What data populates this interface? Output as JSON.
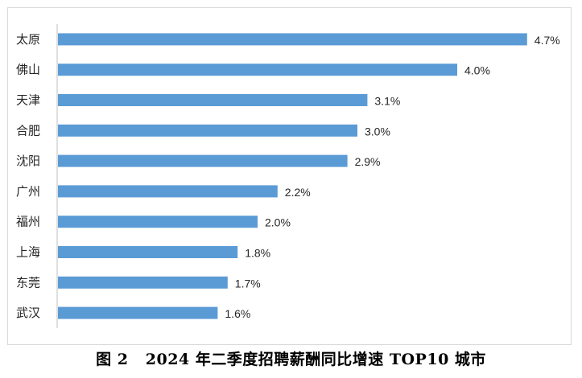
{
  "caption": "图 2   2024 年二季度招聘薪酬同比增速 TOP10 城市",
  "colors": {
    "bar": "#5b9bd5",
    "axis": "#bfbfbf",
    "text": "#262626",
    "frame": "#d9d9d9"
  },
  "chart_data": {
    "type": "bar",
    "orientation": "horizontal",
    "categories": [
      "太原",
      "佛山",
      "天津",
      "合肥",
      "沈阳",
      "广州",
      "福州",
      "上海",
      "东莞",
      "武汉"
    ],
    "values": [
      4.7,
      4.0,
      3.1,
      3.0,
      2.9,
      2.2,
      2.0,
      1.8,
      1.7,
      1.6
    ],
    "value_labels": [
      "4.7%",
      "4.0%",
      "3.1%",
      "3.0%",
      "2.9%",
      "2.2%",
      "2.0%",
      "1.8%",
      "1.7%",
      "1.6%"
    ],
    "unit": "%",
    "xlim": [
      0,
      5
    ],
    "grid": false,
    "legend": "none",
    "title": "",
    "xlabel": "",
    "ylabel": ""
  }
}
